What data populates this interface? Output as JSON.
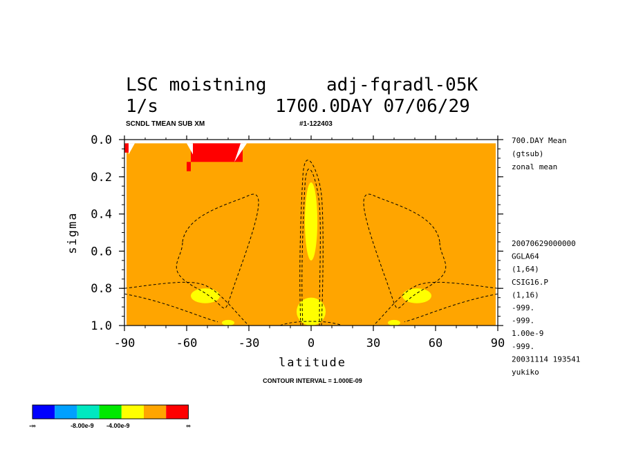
{
  "colors": {
    "background": "#ffffff",
    "field_default": "#ffa500",
    "frame": "#000000",
    "contour_line": "#000000",
    "palette": [
      "#0000ff",
      "#00a0ff",
      "#00e8c0",
      "#00e800",
      "#ffff00",
      "#ffa500",
      "#ff0000"
    ]
  },
  "header": {
    "title_left": "LSC moistning",
    "title_right": "adj-fqradl-05K",
    "units": "1/s",
    "time_info": "1700.0DAY 07/06/29",
    "subtitle_left": "SCNDL TMEAN SUB XM",
    "subtitle_right": "#1-122403"
  },
  "side_info": {
    "top": [
      "700.DAY Mean",
      "(gtsub)",
      "zonal mean"
    ],
    "bottom": [
      "20070629000000",
      "GGLA64",
      "(1,64)",
      "CSIG16.P",
      "(1,16)",
      "-999.",
      "-999.",
      "1.00e-9",
      "-999.",
      "20031114 193541",
      "yukiko"
    ]
  },
  "footer": {
    "contour_interval": "CONTOUR INTERVAL = 1.000E-09"
  },
  "colorbar": {
    "labels": [
      "-∞",
      "-8.00e-9",
      "-4.00e-9",
      "∞"
    ],
    "colors": [
      "#0000ff",
      "#00a0ff",
      "#00e8c0",
      "#00e800",
      "#ffff00",
      "#ffa500",
      "#ff0000"
    ]
  },
  "chart_data": {
    "type": "contour",
    "title": "LSC moistning adj-fqradl-05K",
    "xlabel": "latitude",
    "ylabel": "sigma",
    "xlim": [
      -90,
      90
    ],
    "ylim": [
      1.0,
      0.0
    ],
    "y_inverted": true,
    "x_ticks": [
      -90,
      -60,
      -30,
      0,
      30,
      60,
      90
    ],
    "y_ticks": [
      0.0,
      0.2,
      0.4,
      0.6,
      0.8,
      1.0
    ],
    "x_tick_labels": [
      "-90",
      "-60",
      "-30",
      "0",
      "30",
      "60",
      "90"
    ],
    "y_tick_labels": [
      "0.0",
      "0.2",
      "0.4",
      "0.6",
      "0.8",
      "1.0"
    ],
    "contour_interval": 1e-09,
    "background_level": "near zero (orange band)",
    "regions": [
      {
        "level": "positive (red)",
        "lat_range": [
          -90,
          -88
        ],
        "sigma_range": [
          0.02,
          0.07
        ]
      },
      {
        "level": "positive (red)",
        "lat_range": [
          -58,
          -33
        ],
        "sigma_range": [
          0.02,
          0.12
        ]
      },
      {
        "level": "positive (red)",
        "lat_range": [
          -60,
          -58
        ],
        "sigma_range": [
          0.12,
          0.17
        ]
      },
      {
        "level": "negative (yellow)",
        "lat_range": [
          -3,
          3
        ],
        "sigma_range": [
          0.23,
          0.65
        ]
      },
      {
        "level": "negative (yellow)",
        "lat_range": [
          -7,
          7
        ],
        "sigma_range": [
          0.85,
          1.0
        ]
      },
      {
        "level": "negative (yellow)",
        "lat_range": [
          -58,
          -44
        ],
        "sigma_range": [
          0.8,
          0.88
        ]
      },
      {
        "level": "negative (yellow)",
        "lat_range": [
          44,
          58
        ],
        "sigma_range": [
          0.8,
          0.88
        ]
      },
      {
        "level": "negative (yellow)",
        "lat_range": [
          -43,
          -37
        ],
        "sigma_range": [
          0.97,
          1.0
        ]
      },
      {
        "level": "negative (yellow)",
        "lat_range": [
          37,
          43
        ],
        "sigma_range": [
          0.97,
          1.0
        ]
      }
    ]
  }
}
